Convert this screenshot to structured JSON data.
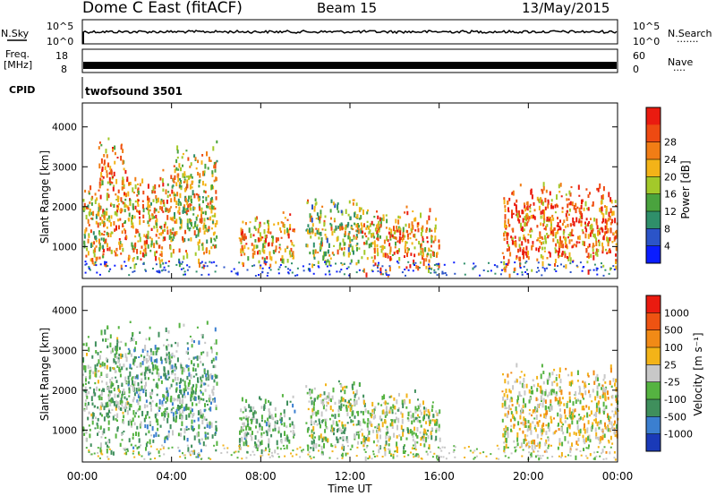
{
  "header": {
    "station": "Dome C East (fitACF)",
    "beam": "Beam 15",
    "date": "13/May/2015"
  },
  "nsky_panel": {
    "left_label": "N.Sky",
    "right_label": "N.Search",
    "right_dots": "·······",
    "tick_top": "10^5",
    "tick_bottom": "10^0"
  },
  "freq_panel": {
    "left_label": "Freq.",
    "unit_label": "[MHz]",
    "right_label": "Nave",
    "right_dots": "····",
    "left_tick_top": "18",
    "left_tick_bottom": "8",
    "right_tick_top": "60",
    "right_tick_bottom": "0"
  },
  "cpid_panel": {
    "label": "CPID",
    "text": "twofsound 3501"
  },
  "colors": {
    "power": [
      "#0a1dff",
      "#2b54c8",
      "#2f8f6a",
      "#4aa33e",
      "#a3c92a",
      "#f3b318",
      "#f17d15",
      "#ee4a12",
      "#ea1b10"
    ],
    "velocity": [
      "#1a3ab8",
      "#3b7fd0",
      "#3f8f5c",
      "#55b341",
      "#c8c8c8",
      "#f3b318",
      "#f18a16",
      "#ee5312",
      "#ea1b10"
    ]
  },
  "chart_data": [
    {
      "type": "heatmap",
      "name": "power",
      "ylabel": "Slant Range [km]",
      "yticks": [
        "1000",
        "2000",
        "3000",
        "4000"
      ],
      "ylim": [
        200,
        4600
      ],
      "colorbar_label": "Power [dB]",
      "colorbar_ticks": [
        "4",
        "8",
        "12",
        "16",
        "20",
        "24",
        "28"
      ],
      "colorbar_range": [
        0,
        32
      ],
      "echo_regions": [
        {
          "t0": 0.0,
          "t1": 1.0,
          "r0": 600,
          "r1": 2500,
          "level": 18
        },
        {
          "t0": 0.7,
          "t1": 2.0,
          "r0": 700,
          "r1": 3500,
          "level": 22
        },
        {
          "t0": 2.0,
          "t1": 4.0,
          "r0": 600,
          "r1": 2800,
          "level": 20
        },
        {
          "t0": 4.0,
          "t1": 6.0,
          "r0": 700,
          "r1": 3500,
          "level": 18
        },
        {
          "t0": 7.0,
          "t1": 9.5,
          "r0": 600,
          "r1": 1800,
          "level": 22
        },
        {
          "t0": 10.0,
          "t1": 12.5,
          "r0": 600,
          "r1": 2200,
          "level": 16
        },
        {
          "t0": 12.5,
          "t1": 16.0,
          "r0": 400,
          "r1": 1900,
          "level": 21
        },
        {
          "t0": 18.8,
          "t1": 24.0,
          "r0": 500,
          "r1": 2500,
          "level": 24
        }
      ]
    },
    {
      "type": "heatmap",
      "name": "velocity",
      "ylabel": "Slant Range [km]",
      "yticks": [
        "1000",
        "2000",
        "3000",
        "4000"
      ],
      "ylim": [
        200,
        4600
      ],
      "colorbar_label": "Velocity [m s⁻¹]",
      "colorbar_ticks": [
        "1000",
        "500",
        "100",
        "25",
        "-25",
        "-100",
        "-500",
        "-1000"
      ],
      "colorbar_range": [
        -1000,
        1000
      ],
      "echo_regions": [
        {
          "t0": 0.0,
          "t1": 2.0,
          "r0": 600,
          "r1": 3500,
          "level": -200
        },
        {
          "t0": 2.0,
          "t1": 6.0,
          "r0": 600,
          "r1": 3500,
          "level": -300
        },
        {
          "t0": 7.0,
          "t1": 9.5,
          "r0": 500,
          "r1": 1800,
          "level": -250
        },
        {
          "t0": 10.0,
          "t1": 12.5,
          "r0": 500,
          "r1": 2200,
          "level": -150
        },
        {
          "t0": 12.5,
          "t1": 16.0,
          "r0": 400,
          "r1": 1900,
          "level": -80
        },
        {
          "t0": 18.8,
          "t1": 24.0,
          "r0": 400,
          "r1": 2500,
          "level": 80
        }
      ]
    }
  ],
  "time_axis": {
    "label": "Time UT",
    "ticks": [
      "00:00",
      "04:00",
      "08:00",
      "12:00",
      "16:00",
      "20:00",
      "00:00"
    ],
    "range_hours": [
      0,
      24
    ]
  }
}
